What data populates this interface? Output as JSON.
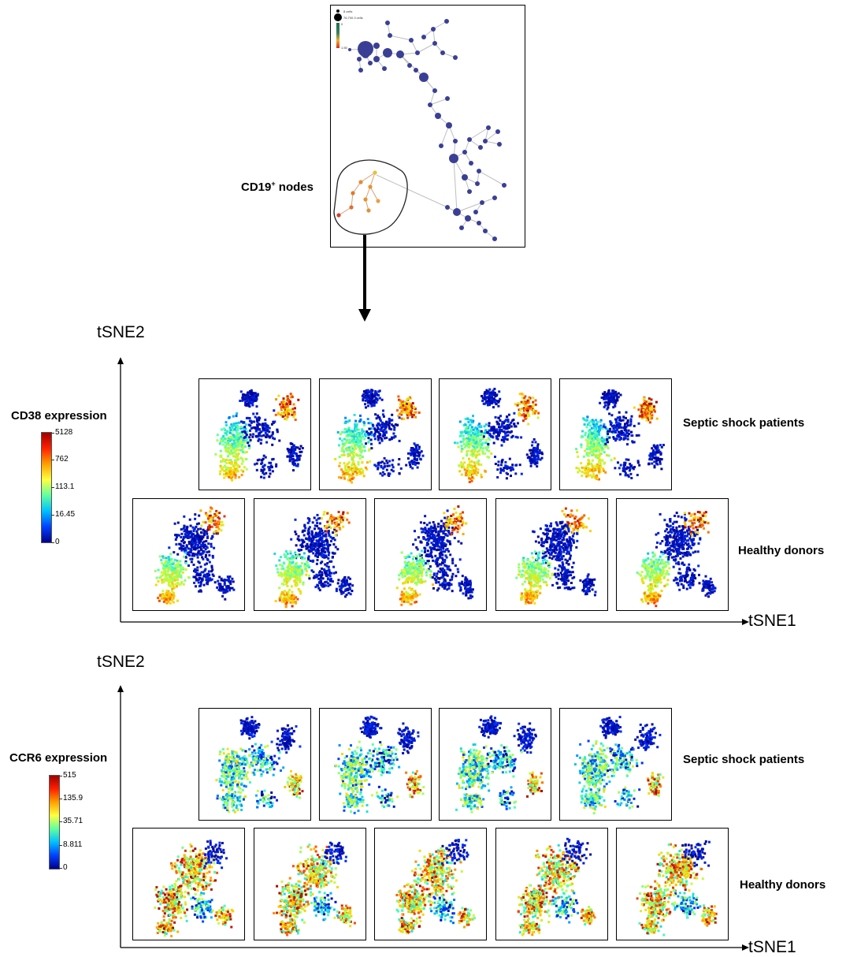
{
  "tree": {
    "label_main": "CD19",
    "label_sup": "+",
    "label_rest": " nodes",
    "legend_small": "8 cells",
    "legend_big": "76,700.3 cells",
    "legend_scale_top": "0",
    "legend_scale_bottom": "1.55"
  },
  "sections": [
    {
      "ylabel": "tSNE2",
      "xlabel": "tSNE1",
      "marker_title": "CD38 expression",
      "colorbar_ticks": [
        "5128",
        "762",
        "113.1",
        "16.45",
        "0"
      ],
      "group_top": "Septic shock patients",
      "group_bottom": "Healthy donors"
    },
    {
      "ylabel": "tSNE2",
      "xlabel": "tSNE1",
      "marker_title": "CCR6 expression",
      "colorbar_ticks": [
        "515",
        "135.9",
        "35.71",
        "8.811",
        "0"
      ],
      "group_top": "Septic shock patients",
      "group_bottom": "Healthy donors"
    }
  ],
  "colors": {
    "node_blue": "#3a3f95",
    "node_edge": "#bdbdbd",
    "colormap": [
      "#00008b",
      "#0030ff",
      "#00b0ff",
      "#40ffc0",
      "#c0ff40",
      "#ffd000",
      "#ff5000",
      "#a00000"
    ]
  }
}
